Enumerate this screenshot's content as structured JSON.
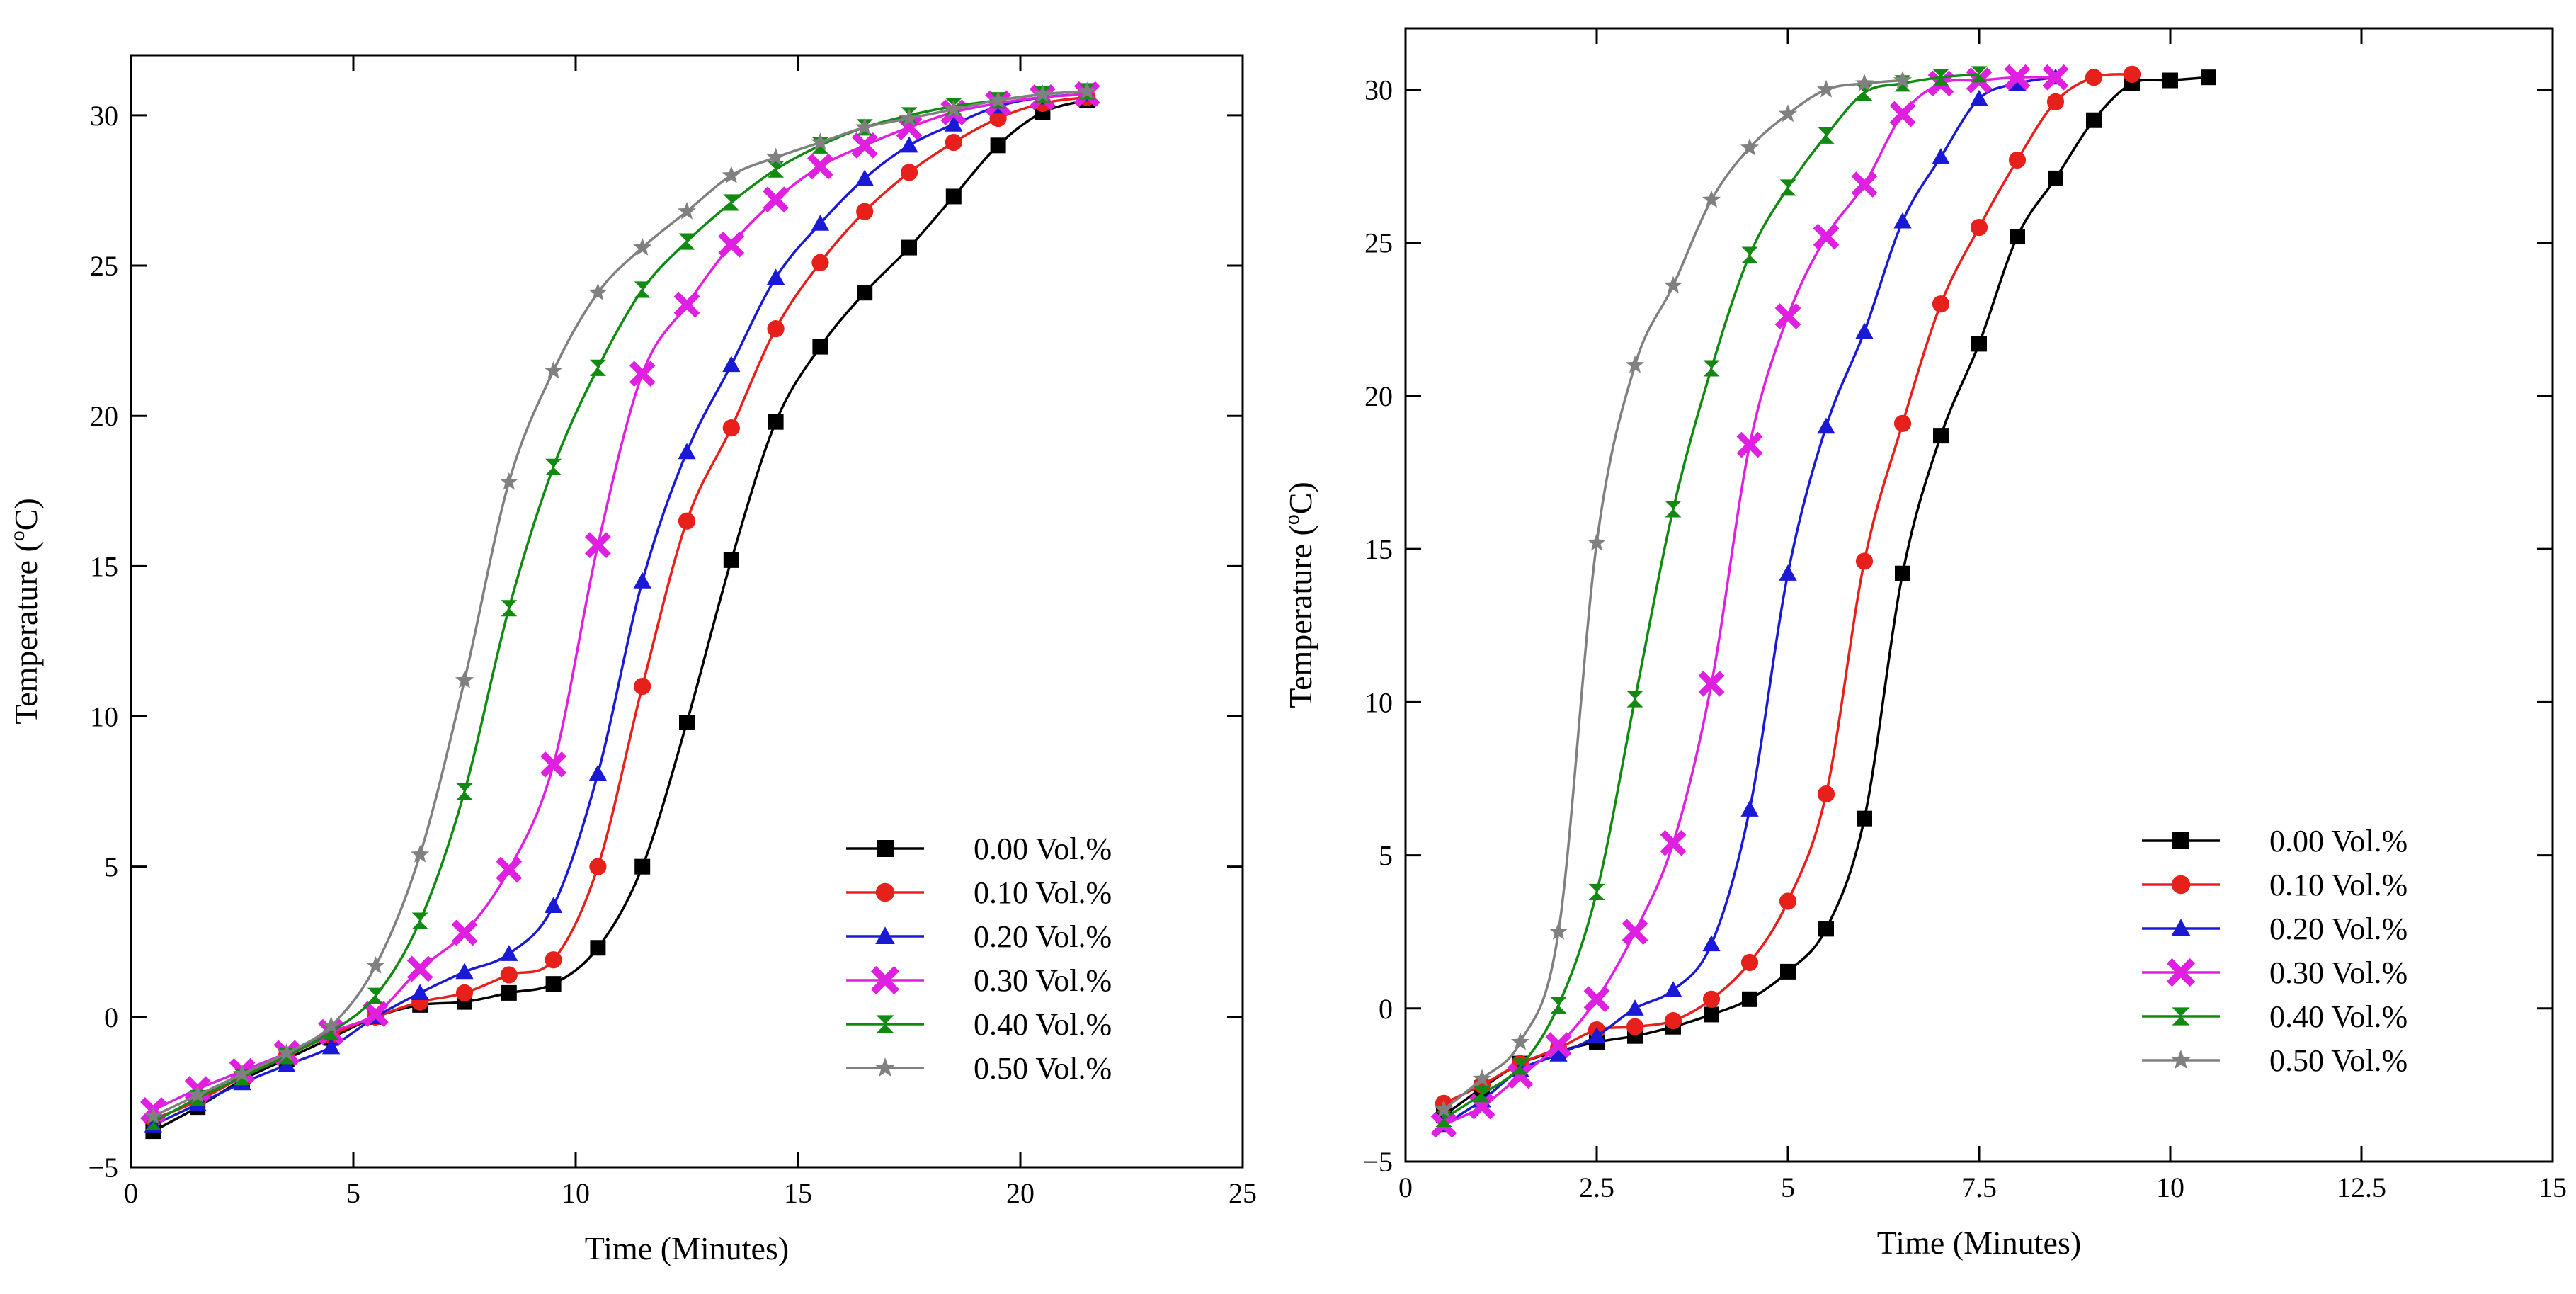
{
  "chart_data": [
    {
      "type": "line",
      "title": "",
      "xlabel": "Time (Minutes)",
      "ylabel_main": "Temperature (",
      "ylabel_sup": "o",
      "ylabel_tail": "C)",
      "xlim": [
        0,
        25
      ],
      "ylim": [
        -5,
        32
      ],
      "xticks": [
        0,
        5,
        10,
        15,
        20,
        25
      ],
      "xtick_labels": [
        "0",
        "5",
        "10",
        "15",
        "20",
        "25"
      ],
      "yticks": [
        -5,
        0,
        5,
        10,
        15,
        20,
        25,
        30
      ],
      "ytick_labels": [
        "−5",
        "0",
        "5",
        "10",
        "15",
        "20",
        "25",
        "30"
      ],
      "legend_position": "bottom-right",
      "x": [
        0.5,
        1.5,
        2.5,
        3.5,
        4.5,
        5.5,
        6.5,
        7.5,
        8.5,
        9.5,
        10.5,
        11.5,
        12.5,
        13.5,
        14.5,
        15.5,
        16.5,
        17.5,
        18.5,
        19.5,
        20.5,
        21.5
      ],
      "series": [
        {
          "name": "0.00 Vol.%",
          "color": "#000000",
          "marker": "square",
          "values": [
            -3.8,
            -3.0,
            -2.1,
            -1.4,
            -0.7,
            0.0,
            0.4,
            0.5,
            0.8,
            1.1,
            2.3,
            5.0,
            9.8,
            15.2,
            19.8,
            22.3,
            24.1,
            25.6,
            27.3,
            29.0,
            30.1,
            30.5
          ]
        },
        {
          "name": "0.10 Vol.%",
          "color": "#e8201c",
          "marker": "circle",
          "values": [
            -3.4,
            -2.8,
            -2.0,
            -1.3,
            -0.6,
            0.0,
            0.5,
            0.8,
            1.4,
            1.9,
            5.0,
            11.0,
            16.5,
            19.6,
            22.9,
            25.1,
            26.8,
            28.1,
            29.1,
            29.9,
            30.4,
            30.6
          ]
        },
        {
          "name": "0.20 Vol.%",
          "color": "#1a1ad6",
          "marker": "triangle",
          "values": [
            -3.6,
            -2.9,
            -2.2,
            -1.6,
            -1.0,
            0.0,
            0.8,
            1.5,
            2.1,
            3.7,
            8.1,
            14.5,
            18.8,
            21.7,
            24.6,
            26.4,
            27.9,
            29.0,
            29.7,
            30.3,
            30.6,
            30.7
          ]
        },
        {
          "name": "0.30 Vol.%",
          "color": "#e020e0",
          "marker": "x",
          "values": [
            -3.1,
            -2.4,
            -1.8,
            -1.2,
            -0.5,
            0.1,
            1.6,
            2.8,
            4.9,
            8.4,
            15.7,
            21.4,
            23.7,
            25.7,
            27.2,
            28.3,
            29.0,
            29.6,
            30.1,
            30.4,
            30.6,
            30.7
          ]
        },
        {
          "name": "0.40 Vol.%",
          "color": "#108a10",
          "marker": "hourglass",
          "values": [
            -3.5,
            -2.7,
            -2.0,
            -1.3,
            -0.5,
            0.7,
            3.2,
            7.5,
            13.6,
            18.3,
            21.6,
            24.2,
            25.8,
            27.1,
            28.2,
            29.0,
            29.6,
            30.0,
            30.3,
            30.5,
            30.7,
            30.8
          ]
        },
        {
          "name": "0.50 Vol.%",
          "color": "#808080",
          "marker": "star",
          "values": [
            -3.3,
            -2.6,
            -1.9,
            -1.2,
            -0.3,
            1.7,
            5.4,
            11.2,
            17.8,
            21.5,
            24.1,
            25.6,
            26.8,
            28.0,
            28.6,
            29.1,
            29.6,
            29.9,
            30.2,
            30.5,
            30.7,
            30.8
          ]
        }
      ]
    },
    {
      "type": "line",
      "title": "",
      "xlabel": "Time (Minutes)",
      "ylabel_main": "Temperature (",
      "ylabel_sup": "o",
      "ylabel_tail": "C)",
      "xlim": [
        0,
        15
      ],
      "ylim": [
        -5,
        32
      ],
      "xticks": [
        0,
        2.5,
        5,
        7.5,
        10,
        12.5,
        15
      ],
      "xtick_labels": [
        "0",
        "2.5",
        "5",
        "7.5",
        "10",
        "12.5",
        "15"
      ],
      "yticks": [
        -5,
        0,
        5,
        10,
        15,
        20,
        25,
        30
      ],
      "ytick_labels": [
        "−5",
        "0",
        "5",
        "10",
        "15",
        "20",
        "25",
        "30"
      ],
      "legend_position": "bottom-right",
      "series": [
        {
          "name": "0.00 Vol.%",
          "color": "#000000",
          "marker": "square",
          "x": [
            0.5,
            1.0,
            1.5,
            2.0,
            2.5,
            3.0,
            3.5,
            4.0,
            4.5,
            5.0,
            5.5,
            6.0,
            6.5,
            7.0,
            7.5,
            8.0,
            8.5,
            9.0,
            9.5,
            10.0,
            10.5
          ],
          "values": [
            -3.5,
            -2.6,
            -1.8,
            -1.4,
            -1.1,
            -0.9,
            -0.6,
            -0.2,
            0.3,
            1.2,
            2.6,
            6.2,
            14.2,
            18.7,
            21.7,
            25.2,
            27.1,
            29.0,
            30.2,
            30.3,
            30.4
          ]
        },
        {
          "name": "0.10 Vol.%",
          "color": "#e8201c",
          "marker": "circle",
          "x": [
            0.5,
            1.0,
            1.5,
            2.0,
            2.5,
            3.0,
            3.5,
            4.0,
            4.5,
            5.0,
            5.5,
            6.0,
            6.5,
            7.0,
            7.5,
            8.0,
            8.5,
            9.0,
            9.5
          ],
          "values": [
            -3.1,
            -2.5,
            -1.8,
            -1.3,
            -0.7,
            -0.6,
            -0.4,
            0.3,
            1.5,
            3.5,
            7.0,
            14.6,
            19.1,
            23.0,
            25.5,
            27.7,
            29.6,
            30.4,
            30.5
          ]
        },
        {
          "name": "0.20 Vol.%",
          "color": "#1a1ad6",
          "marker": "triangle",
          "x": [
            0.5,
            1.0,
            1.5,
            2.0,
            2.5,
            3.0,
            3.5,
            4.0,
            4.5,
            5.0,
            5.5,
            6.0,
            6.5,
            7.0,
            7.5,
            8.0,
            8.5
          ],
          "values": [
            -3.8,
            -3.0,
            -2.0,
            -1.5,
            -0.9,
            0.0,
            0.6,
            2.1,
            6.5,
            14.2,
            19.0,
            22.1,
            25.7,
            27.8,
            29.7,
            30.2,
            30.4
          ]
        },
        {
          "name": "0.30 Vol.%",
          "color": "#e020e0",
          "marker": "x",
          "x": [
            0.5,
            1.0,
            1.5,
            2.0,
            2.5,
            3.0,
            3.5,
            4.0,
            4.5,
            5.0,
            5.5,
            6.0,
            6.5,
            7.0,
            7.5,
            8.0,
            8.5
          ],
          "values": [
            -3.8,
            -3.2,
            -2.2,
            -1.2,
            0.3,
            2.5,
            5.4,
            10.6,
            18.4,
            22.6,
            25.2,
            26.9,
            29.2,
            30.2,
            30.3,
            30.4,
            30.4
          ]
        },
        {
          "name": "0.40 Vol.%",
          "color": "#108a10",
          "marker": "hourglass",
          "x": [
            0.5,
            1.0,
            1.5,
            2.0,
            2.5,
            3.0,
            3.5,
            4.0,
            4.5,
            5.0,
            5.5,
            6.0,
            6.5,
            7.0,
            7.5
          ],
          "values": [
            -3.6,
            -2.8,
            -1.9,
            0.1,
            3.8,
            10.1,
            16.3,
            20.9,
            24.6,
            26.8,
            28.5,
            29.9,
            30.2,
            30.4,
            30.5
          ]
        },
        {
          "name": "0.50 Vol.%",
          "color": "#808080",
          "marker": "star",
          "x": [
            0.5,
            1.0,
            1.5,
            2.0,
            2.5,
            3.0,
            3.5,
            4.0,
            4.5,
            5.0,
            5.5,
            6.0,
            6.5
          ],
          "values": [
            -3.3,
            -2.3,
            -1.1,
            2.5,
            15.2,
            21.0,
            23.6,
            26.4,
            28.1,
            29.2,
            30.0,
            30.2,
            30.3
          ]
        }
      ]
    }
  ]
}
